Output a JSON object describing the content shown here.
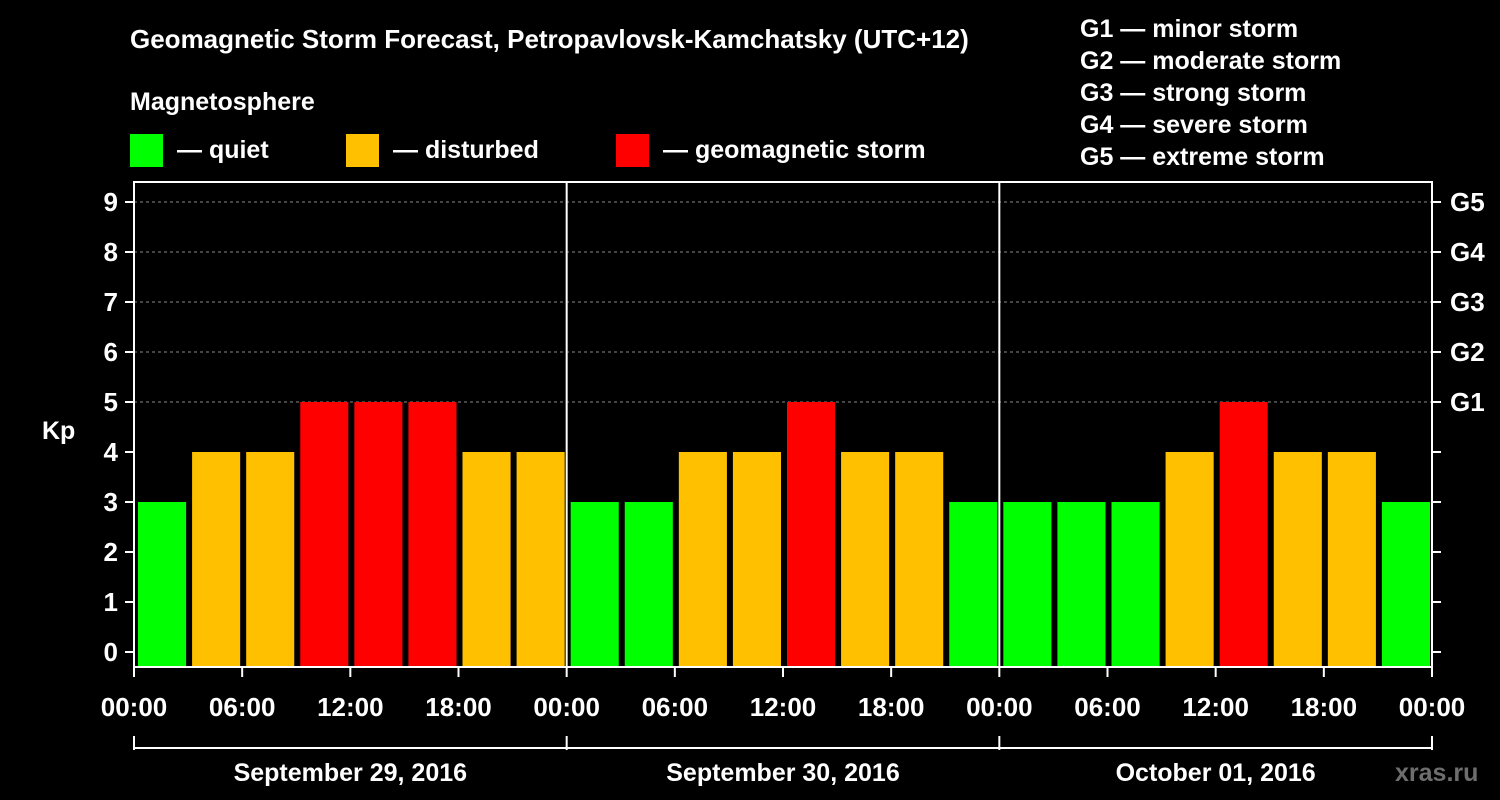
{
  "chart_data": {
    "type": "bar",
    "title": "Geomagnetic Storm Forecast, Petropavlovsk-Kamchatsky (UTC+12)",
    "legend_title": "Magnetosphere",
    "legend": [
      {
        "key": "quiet",
        "label": "— quiet",
        "color": "#00ff00"
      },
      {
        "key": "disturbed",
        "label": "— disturbed",
        "color": "#ffc000"
      },
      {
        "key": "storm",
        "label": "— geomagnetic storm",
        "color": "#ff0000"
      }
    ],
    "storm_scale": [
      "G1 — minor storm",
      "G2 — moderate storm",
      "G3 — strong storm",
      "G4 — severe storm",
      "G5 — extreme storm"
    ],
    "ylabel": "Kp",
    "ylim": [
      0,
      9
    ],
    "yticks": [
      "0",
      "1",
      "2",
      "3",
      "4",
      "5",
      "6",
      "7",
      "8",
      "9"
    ],
    "right_ticks": [
      {
        "value": 5,
        "label": "G1"
      },
      {
        "value": 6,
        "label": "G2"
      },
      {
        "value": 7,
        "label": "G3"
      },
      {
        "value": 8,
        "label": "G4"
      },
      {
        "value": 9,
        "label": "G5"
      }
    ],
    "xticks": [
      "00:00",
      "06:00",
      "12:00",
      "18:00",
      "00:00",
      "06:00",
      "12:00",
      "18:00",
      "00:00",
      "06:00",
      "12:00",
      "18:00",
      "00:00"
    ],
    "days": [
      "September 29, 2016",
      "September 30, 2016",
      "October 01, 2016"
    ],
    "values": [
      3,
      4,
      4,
      5,
      5,
      5,
      4,
      4,
      3,
      3,
      4,
      4,
      5,
      4,
      4,
      3,
      3,
      3,
      3,
      4,
      5,
      4,
      4,
      3
    ],
    "colors": {
      "quiet": "#00ff00",
      "disturbed": "#ffc000",
      "storm": "#ff0000"
    },
    "grid": true
  },
  "watermark": "xras.ru"
}
